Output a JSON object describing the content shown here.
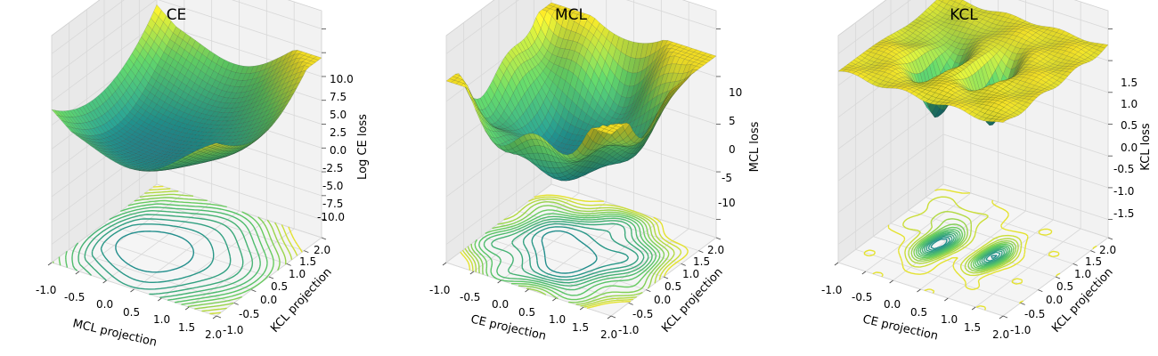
{
  "chart_data": [
    {
      "type": "surface3d",
      "title": "CE",
      "xlabel": "MCL projection",
      "ylabel": "KCL projection",
      "zlabel": "Log CE loss",
      "xticks": [
        "-1.0",
        "-0.5",
        "0.0",
        "0.5",
        "1.0",
        "1.5",
        "2.0"
      ],
      "yticks": [
        "-1.0",
        "-0.5",
        "0.0",
        "0.5",
        "1.0",
        "1.5",
        "2.0"
      ],
      "zticks": [
        "-10.0",
        "-7.5",
        "-5.0",
        "-2.5",
        "0.0",
        "2.5",
        "5.0",
        "7.5",
        "10.0"
      ],
      "xlim": [
        -1.0,
        2.0
      ],
      "ylim": [
        -1.0,
        2.0
      ],
      "zlim": [
        -11.5,
        11.5
      ],
      "colormap": "viridis_r",
      "surface_z_range": [
        -1.5,
        8.0
      ],
      "minimum": {
        "x": 0.2,
        "y": 0.2,
        "z": -1.5
      },
      "contour_floor": true
    },
    {
      "type": "surface3d",
      "title": "MCL",
      "xlabel": "CE projection",
      "ylabel": "KCL projection",
      "zlabel": "MCL loss",
      "xticks": [
        "-1.0",
        "-0.5",
        "0.0",
        "0.5",
        "1.0",
        "1.5",
        "2.0"
      ],
      "yticks": [
        "-1.0",
        "-0.5",
        "0.0",
        "0.5",
        "1.0",
        "1.5",
        "2.0"
      ],
      "zticks": [
        "-10",
        "-5",
        "0",
        "5",
        "10"
      ],
      "xlim": [
        -1.0,
        2.0
      ],
      "ylim": [
        -1.0,
        2.0
      ],
      "zlim": [
        -14,
        14
      ],
      "colormap": "viridis_r",
      "surface_z_range": [
        -4.0,
        10.0
      ],
      "minimum": {
        "x": 0.4,
        "y": 0.4,
        "z": -4.0
      },
      "contour_floor": true
    },
    {
      "type": "surface3d",
      "title": "KCL",
      "xlabel": "CE projection",
      "ylabel": "KCL projection",
      "zlabel": "KCL loss",
      "xticks": [
        "-1.0",
        "-0.5",
        "0.0",
        "0.5",
        "1.0",
        "1.5",
        "2.0"
      ],
      "yticks": [
        "-1.0",
        "-0.5",
        "0.0",
        "0.5",
        "1.0",
        "1.5",
        "2.0"
      ],
      "zticks": [
        "-1.5",
        "-1.0",
        "-0.5",
        "0.0",
        "0.5",
        "1.0",
        "1.5"
      ],
      "xlim": [
        -1.0,
        2.0
      ],
      "ylim": [
        -1.0,
        2.0
      ],
      "zlim": [
        -1.9,
        1.9
      ],
      "colormap": "viridis_r",
      "surface_z_range": [
        0.3,
        1.6
      ],
      "minimum": {
        "x": 0.0,
        "y": 0.0,
        "z": 0.3
      },
      "contour_floor": true
    }
  ]
}
